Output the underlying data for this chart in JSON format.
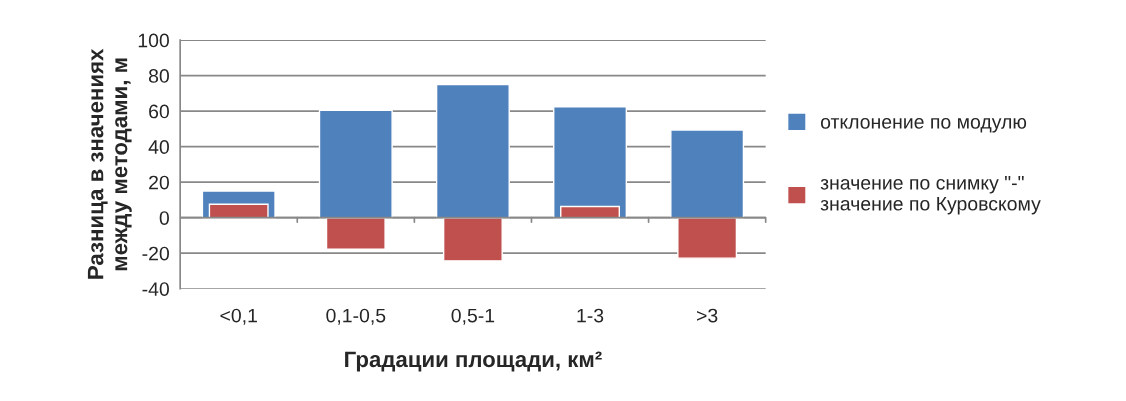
{
  "chart_data": {
    "type": "bar",
    "xlabel": "Градации площади, км²",
    "ylabel": "Разница в значениях\nмежду методами, м",
    "categories": [
      "<0,1",
      "0,1-0,5",
      "0,5-1",
      "1-3",
      ">3"
    ],
    "series": [
      {
        "name": "отклонение по модулю",
        "color": "#4f81bd",
        "values": [
          15,
          60.5,
          75,
          62.5,
          49.4
        ]
      },
      {
        "name": "значение по снимку \"-\"\nзначение по Куровскому",
        "color": "#c0504d",
        "values": [
          7.6,
          -17.7,
          -24.3,
          6.3,
          -22.8
        ]
      }
    ],
    "ylim": [
      -40,
      100
    ],
    "yticks": [
      -40,
      -20,
      0,
      20,
      40,
      60,
      80,
      100
    ],
    "grid": "y",
    "legend": "right"
  }
}
